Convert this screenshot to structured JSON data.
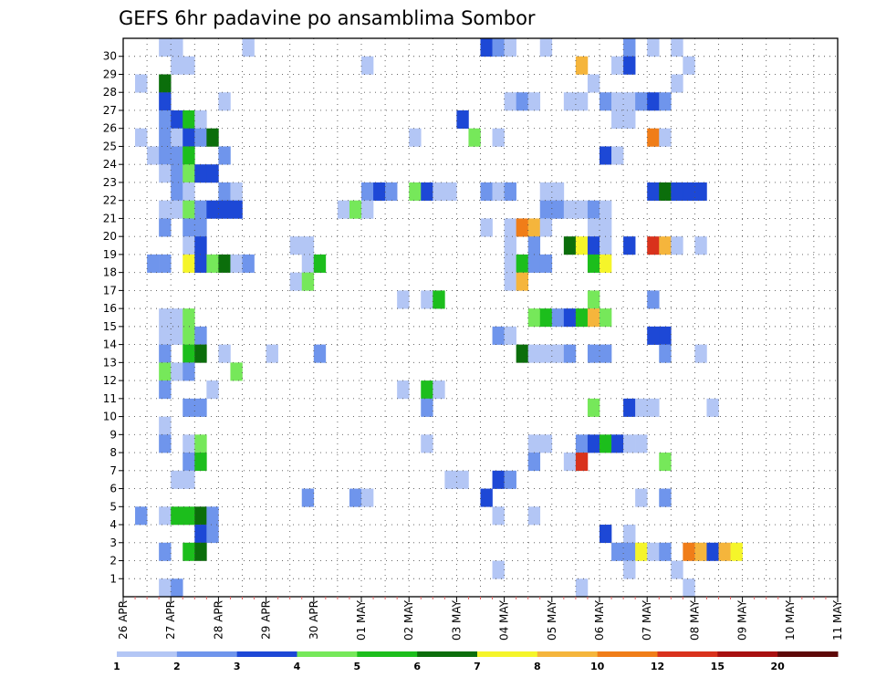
{
  "chart_data": {
    "type": "heatmap",
    "title": "GEFS 6hr padavine po ansamblima Sombor",
    "y_members": [
      1,
      2,
      3,
      4,
      5,
      6,
      7,
      8,
      9,
      10,
      11,
      12,
      13,
      14,
      15,
      16,
      17,
      18,
      19,
      20,
      21,
      22,
      23,
      24,
      25,
      26,
      27,
      28,
      29,
      30
    ],
    "x_dates": [
      "26 APR",
      "27 APR",
      "28 APR",
      "29 APR",
      "30 APR",
      "01 MAY",
      "02 MAY",
      "03 MAY",
      "04 MAY",
      "05 MAY",
      "06 MAY",
      "07 MAY",
      "08 MAY",
      "09 MAY",
      "10 MAY",
      "11 MAY"
    ],
    "steps_per_day": 4,
    "colorbar": {
      "ticks": [
        "1",
        "2",
        "3",
        "4",
        "5",
        "6",
        "7",
        "8",
        "10",
        "12",
        "15",
        "20"
      ],
      "colors": [
        "#b3c6f5",
        "#6f95ec",
        "#1d48d6",
        "#76e85a",
        "#1cbe1c",
        "#0b6e0b",
        "#f5f52a",
        "#f5b53c",
        "#f07d18",
        "#d9321c",
        "#a81010",
        "#5e0808"
      ]
    },
    "cells": [
      [
        30,
        3,
        1
      ],
      [
        30,
        4,
        1
      ],
      [
        30,
        10,
        1
      ],
      [
        30,
        30,
        3
      ],
      [
        30,
        31,
        2
      ],
      [
        30,
        32,
        1
      ],
      [
        30,
        35,
        1
      ],
      [
        30,
        42,
        2
      ],
      [
        30,
        44,
        1
      ],
      [
        30,
        46,
        1
      ],
      [
        29,
        4,
        1
      ],
      [
        29,
        5,
        1
      ],
      [
        29,
        20,
        1
      ],
      [
        29,
        38,
        8
      ],
      [
        29,
        41,
        1
      ],
      [
        29,
        42,
        3
      ],
      [
        29,
        47,
        1
      ],
      [
        28,
        1,
        1
      ],
      [
        28,
        3,
        6
      ],
      [
        28,
        39,
        1
      ],
      [
        28,
        46,
        1
      ],
      [
        27,
        3,
        3
      ],
      [
        27,
        8,
        1
      ],
      [
        27,
        32,
        1
      ],
      [
        27,
        33,
        2
      ],
      [
        27,
        34,
        1
      ],
      [
        27,
        37,
        1
      ],
      [
        27,
        38,
        1
      ],
      [
        27,
        40,
        2
      ],
      [
        27,
        41,
        1
      ],
      [
        27,
        42,
        1
      ],
      [
        27,
        43,
        2
      ],
      [
        27,
        44,
        3
      ],
      [
        27,
        45,
        2
      ],
      [
        26,
        3,
        2
      ],
      [
        26,
        4,
        3
      ],
      [
        26,
        5,
        5
      ],
      [
        26,
        6,
        1
      ],
      [
        26,
        28,
        3
      ],
      [
        26,
        41,
        1
      ],
      [
        26,
        42,
        1
      ],
      [
        25,
        1,
        1
      ],
      [
        25,
        3,
        2
      ],
      [
        25,
        4,
        1
      ],
      [
        25,
        5,
        3
      ],
      [
        25,
        6,
        2
      ],
      [
        25,
        7,
        6
      ],
      [
        25,
        24,
        1
      ],
      [
        25,
        29,
        4
      ],
      [
        25,
        31,
        1
      ],
      [
        25,
        44,
        9
      ],
      [
        25,
        45,
        1
      ],
      [
        24,
        2,
        1
      ],
      [
        24,
        3,
        2
      ],
      [
        24,
        4,
        2
      ],
      [
        24,
        5,
        5
      ],
      [
        24,
        8,
        2
      ],
      [
        24,
        40,
        3
      ],
      [
        24,
        41,
        1
      ],
      [
        23,
        3,
        1
      ],
      [
        23,
        4,
        2
      ],
      [
        23,
        5,
        4
      ],
      [
        23,
        6,
        3
      ],
      [
        23,
        7,
        3
      ],
      [
        22,
        4,
        2
      ],
      [
        22,
        5,
        1
      ],
      [
        22,
        8,
        2
      ],
      [
        22,
        9,
        1
      ],
      [
        22,
        20,
        2
      ],
      [
        22,
        21,
        3
      ],
      [
        22,
        22,
        2
      ],
      [
        22,
        24,
        4
      ],
      [
        22,
        25,
        3
      ],
      [
        22,
        26,
        1
      ],
      [
        22,
        27,
        1
      ],
      [
        22,
        30,
        2
      ],
      [
        22,
        31,
        1
      ],
      [
        22,
        32,
        2
      ],
      [
        22,
        35,
        1
      ],
      [
        22,
        36,
        1
      ],
      [
        22,
        44,
        3
      ],
      [
        22,
        45,
        6
      ],
      [
        22,
        46,
        3
      ],
      [
        22,
        47,
        3
      ],
      [
        22,
        48,
        3
      ],
      [
        21,
        3,
        1
      ],
      [
        21,
        4,
        1
      ],
      [
        21,
        5,
        4
      ],
      [
        21,
        6,
        2
      ],
      [
        21,
        7,
        3
      ],
      [
        21,
        8,
        3
      ],
      [
        21,
        9,
        3
      ],
      [
        21,
        18,
        1
      ],
      [
        21,
        19,
        4
      ],
      [
        21,
        20,
        1
      ],
      [
        21,
        35,
        2
      ],
      [
        21,
        36,
        2
      ],
      [
        21,
        37,
        1
      ],
      [
        21,
        38,
        1
      ],
      [
        21,
        39,
        2
      ],
      [
        21,
        40,
        1
      ],
      [
        20,
        3,
        2
      ],
      [
        20,
        5,
        2
      ],
      [
        20,
        6,
        2
      ],
      [
        20,
        30,
        1
      ],
      [
        20,
        32,
        1
      ],
      [
        20,
        33,
        9
      ],
      [
        20,
        34,
        8
      ],
      [
        20,
        35,
        1
      ],
      [
        20,
        39,
        1
      ],
      [
        20,
        40,
        1
      ],
      [
        19,
        5,
        1
      ],
      [
        19,
        6,
        3
      ],
      [
        19,
        14,
        1
      ],
      [
        19,
        15,
        1
      ],
      [
        19,
        32,
        1
      ],
      [
        19,
        34,
        2
      ],
      [
        19,
        37,
        6
      ],
      [
        19,
        38,
        7
      ],
      [
        19,
        39,
        3
      ],
      [
        19,
        40,
        1
      ],
      [
        19,
        42,
        3
      ],
      [
        19,
        44,
        10
      ],
      [
        19,
        45,
        8
      ],
      [
        19,
        46,
        1
      ],
      [
        19,
        48,
        1
      ],
      [
        18,
        2,
        2
      ],
      [
        18,
        3,
        2
      ],
      [
        18,
        5,
        7
      ],
      [
        18,
        6,
        3
      ],
      [
        18,
        7,
        4
      ],
      [
        18,
        8,
        6
      ],
      [
        18,
        9,
        1
      ],
      [
        18,
        10,
        2
      ],
      [
        18,
        15,
        1
      ],
      [
        18,
        16,
        5
      ],
      [
        18,
        32,
        1
      ],
      [
        18,
        33,
        5
      ],
      [
        18,
        34,
        2
      ],
      [
        18,
        35,
        2
      ],
      [
        18,
        39,
        5
      ],
      [
        18,
        40,
        7
      ],
      [
        17,
        14,
        1
      ],
      [
        17,
        15,
        4
      ],
      [
        17,
        32,
        1
      ],
      [
        17,
        33,
        8
      ],
      [
        16,
        23,
        1
      ],
      [
        16,
        25,
        1
      ],
      [
        16,
        26,
        5
      ],
      [
        16,
        39,
        4
      ],
      [
        16,
        44,
        2
      ],
      [
        15,
        3,
        1
      ],
      [
        15,
        4,
        1
      ],
      [
        15,
        5,
        4
      ],
      [
        15,
        34,
        4
      ],
      [
        15,
        35,
        5
      ],
      [
        15,
        36,
        2
      ],
      [
        15,
        37,
        3
      ],
      [
        15,
        38,
        5
      ],
      [
        15,
        39,
        8
      ],
      [
        15,
        40,
        4
      ],
      [
        14,
        3,
        1
      ],
      [
        14,
        4,
        1
      ],
      [
        14,
        5,
        4
      ],
      [
        14,
        6,
        2
      ],
      [
        14,
        31,
        2
      ],
      [
        14,
        32,
        1
      ],
      [
        14,
        44,
        3
      ],
      [
        14,
        45,
        3
      ],
      [
        13,
        3,
        2
      ],
      [
        13,
        5,
        5
      ],
      [
        13,
        6,
        6
      ],
      [
        13,
        8,
        1
      ],
      [
        13,
        12,
        1
      ],
      [
        13,
        16,
        2
      ],
      [
        13,
        33,
        6
      ],
      [
        13,
        34,
        1
      ],
      [
        13,
        35,
        1
      ],
      [
        13,
        36,
        1
      ],
      [
        13,
        37,
        2
      ],
      [
        13,
        39,
        2
      ],
      [
        13,
        40,
        2
      ],
      [
        13,
        45,
        2
      ],
      [
        13,
        48,
        1
      ],
      [
        12,
        3,
        4
      ],
      [
        12,
        4,
        1
      ],
      [
        12,
        5,
        2
      ],
      [
        12,
        9,
        4
      ],
      [
        11,
        3,
        2
      ],
      [
        11,
        7,
        1
      ],
      [
        11,
        23,
        1
      ],
      [
        11,
        25,
        5
      ],
      [
        11,
        26,
        1
      ],
      [
        10,
        5,
        2
      ],
      [
        10,
        6,
        2
      ],
      [
        10,
        25,
        2
      ],
      [
        10,
        39,
        4
      ],
      [
        10,
        42,
        3
      ],
      [
        10,
        43,
        1
      ],
      [
        10,
        44,
        1
      ],
      [
        10,
        49,
        1
      ],
      [
        9,
        3,
        1
      ],
      [
        8,
        3,
        2
      ],
      [
        8,
        5,
        1
      ],
      [
        8,
        6,
        4
      ],
      [
        8,
        25,
        1
      ],
      [
        8,
        34,
        1
      ],
      [
        8,
        35,
        1
      ],
      [
        8,
        38,
        2
      ],
      [
        8,
        39,
        3
      ],
      [
        8,
        40,
        5
      ],
      [
        8,
        41,
        3
      ],
      [
        8,
        42,
        1
      ],
      [
        8,
        43,
        1
      ],
      [
        7,
        5,
        2
      ],
      [
        7,
        6,
        5
      ],
      [
        7,
        34,
        2
      ],
      [
        7,
        37,
        1
      ],
      [
        7,
        38,
        10
      ],
      [
        7,
        45,
        4
      ],
      [
        6,
        4,
        1
      ],
      [
        6,
        5,
        1
      ],
      [
        6,
        27,
        1
      ],
      [
        6,
        28,
        1
      ],
      [
        6,
        31,
        3
      ],
      [
        6,
        32,
        2
      ],
      [
        5,
        15,
        2
      ],
      [
        5,
        19,
        2
      ],
      [
        5,
        20,
        1
      ],
      [
        5,
        30,
        3
      ],
      [
        5,
        43,
        1
      ],
      [
        5,
        45,
        2
      ],
      [
        4,
        1,
        2
      ],
      [
        4,
        3,
        1
      ],
      [
        4,
        4,
        5
      ],
      [
        4,
        5,
        5
      ],
      [
        4,
        6,
        6
      ],
      [
        4,
        7,
        2
      ],
      [
        4,
        31,
        1
      ],
      [
        4,
        34,
        1
      ],
      [
        3,
        6,
        3
      ],
      [
        3,
        7,
        2
      ],
      [
        3,
        40,
        3
      ],
      [
        3,
        42,
        1
      ],
      [
        2,
        3,
        2
      ],
      [
        2,
        5,
        5
      ],
      [
        2,
        6,
        6
      ],
      [
        2,
        41,
        2
      ],
      [
        2,
        42,
        2
      ],
      [
        2,
        43,
        7
      ],
      [
        2,
        44,
        1
      ],
      [
        2,
        45,
        2
      ],
      [
        2,
        47,
        9
      ],
      [
        2,
        48,
        8
      ],
      [
        2,
        49,
        3
      ],
      [
        2,
        50,
        8
      ],
      [
        2,
        51,
        7
      ],
      [
        1,
        31,
        1
      ],
      [
        1,
        42,
        1
      ],
      [
        1,
        46,
        1
      ],
      [
        0,
        3,
        1
      ],
      [
        0,
        4,
        2
      ],
      [
        0,
        38,
        1
      ],
      [
        0,
        47,
        1
      ]
    ]
  }
}
